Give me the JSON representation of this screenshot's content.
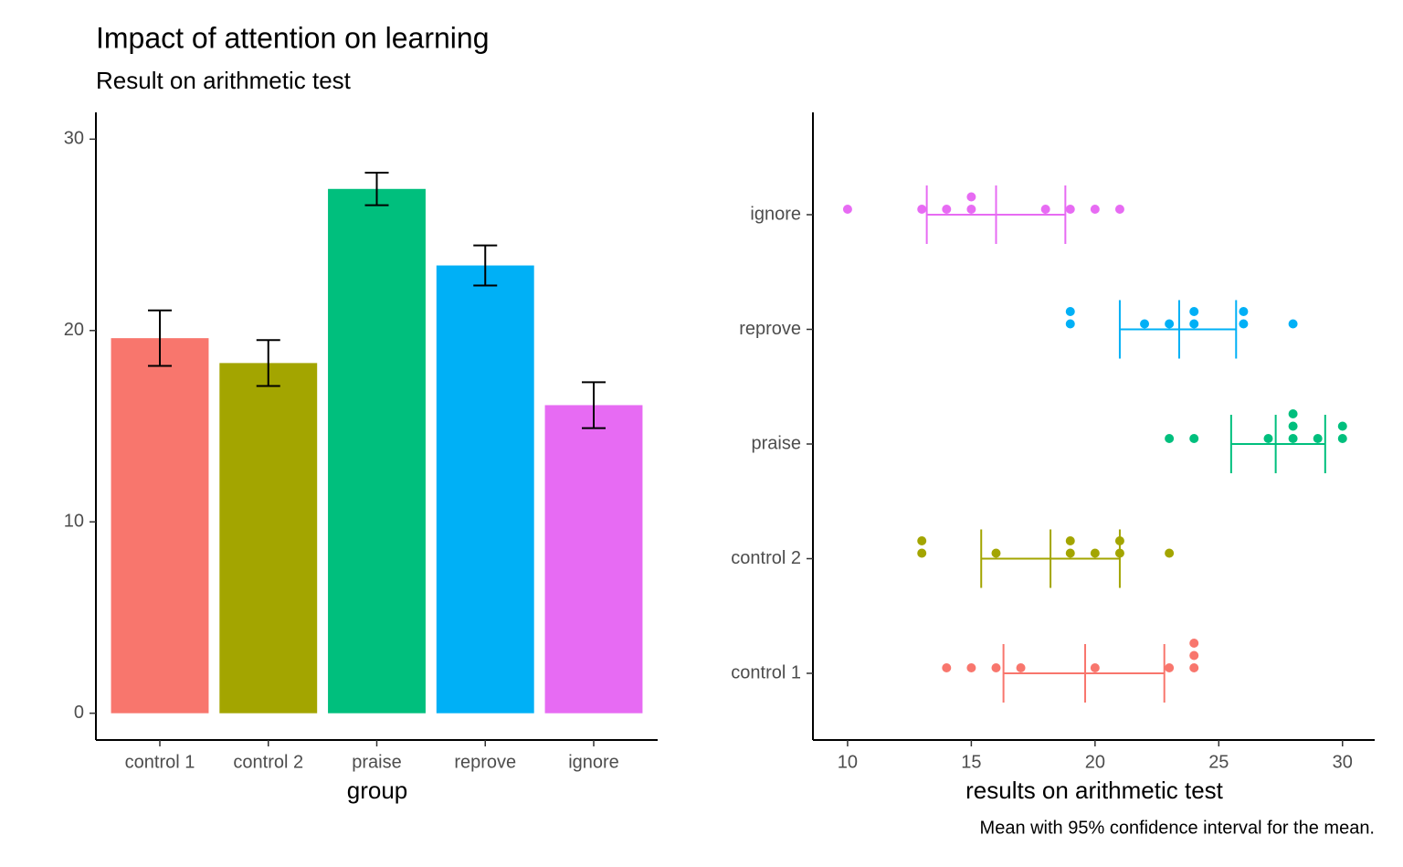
{
  "chart_data": [
    {
      "type": "bar",
      "title": "Impact of attention on learning",
      "subtitle": "Result on arithmetic test",
      "x_label": "group",
      "categories": [
        "control 1",
        "control 2",
        "praise",
        "reprove",
        "ignore"
      ],
      "values": [
        19.6,
        18.3,
        27.4,
        23.4,
        16.1
      ],
      "errors": [
        1.45,
        1.2,
        0.85,
        1.05,
        1.2
      ],
      "colors": [
        "#F8766D",
        "#A3A500",
        "#00BF7D",
        "#00B0F6",
        "#E76BF3"
      ],
      "ylim": [
        -1.4,
        31.4
      ],
      "yticks": [
        0,
        10,
        20,
        30
      ]
    },
    {
      "type": "dotplot",
      "x_label": "results on arithmetic test",
      "caption": "Mean with 95% confidence interval for the mean.",
      "series": [
        {
          "name": "control 1",
          "color": "#F8766D",
          "points": [
            14,
            15,
            16,
            17,
            20,
            23,
            24,
            24,
            24
          ],
          "mean": 19.6,
          "ci": [
            16.3,
            22.8
          ]
        },
        {
          "name": "control 2",
          "color": "#A3A500",
          "points": [
            13,
            13,
            16,
            19,
            19,
            20,
            21,
            21,
            23
          ],
          "mean": 18.2,
          "ci": [
            15.4,
            21
          ]
        },
        {
          "name": "praise",
          "color": "#00BF7D",
          "points": [
            23,
            24,
            27,
            28,
            28,
            28,
            29,
            30,
            30
          ],
          "mean": 27.3,
          "ci": [
            25.5,
            29.3
          ]
        },
        {
          "name": "reprove",
          "color": "#00B0F6",
          "points": [
            19,
            19,
            22,
            23,
            24,
            24,
            26,
            26,
            28
          ],
          "mean": 23.4,
          "ci": [
            21,
            25.7
          ]
        },
        {
          "name": "ignore",
          "color": "#E76BF3",
          "points": [
            10,
            13,
            14,
            15,
            15,
            18,
            19,
            20,
            21
          ],
          "mean": 16,
          "ci": [
            13.2,
            18.8
          ]
        }
      ],
      "xlim": [
        8.6,
        31.3
      ],
      "xticks": [
        10,
        15,
        20,
        25,
        30
      ]
    }
  ]
}
